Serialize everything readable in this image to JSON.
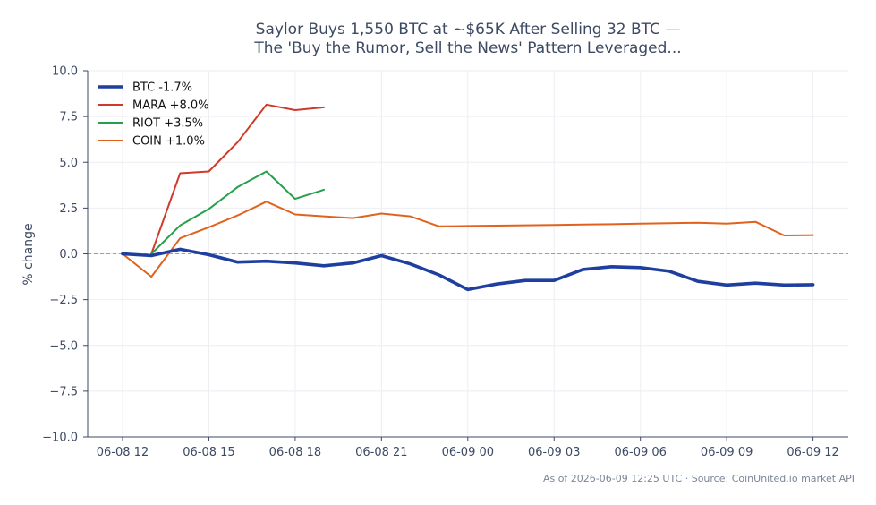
{
  "chart_data": {
    "type": "line",
    "title": "Saylor Buys 1,550 BTC at ~$65K After Selling 32 BTC —",
    "subtitle": "The 'Buy the Rumor, Sell the News' Pattern Leveraged...",
    "xlabel": "",
    "ylabel": "% change",
    "ylim": [
      -10,
      10
    ],
    "yticks": [
      10.0,
      7.5,
      5.0,
      2.5,
      0.0,
      -2.5,
      -5.0,
      -7.5,
      -10.0
    ],
    "ytick_labels": [
      "10.0",
      "7.5",
      "5.0",
      "2.5",
      "0.0",
      "−2.5",
      "−5.0",
      "−7.5",
      "−10.0"
    ],
    "xlim": [
      0,
      24.9
    ],
    "xticks": [
      0,
      3,
      6,
      9,
      12,
      15,
      18,
      21,
      24
    ],
    "xtick_labels": [
      "06-08 12",
      "06-08 15",
      "06-08 18",
      "06-08 21",
      "06-09 00",
      "06-09 03",
      "06-09 06",
      "06-09 09",
      "06-09 12"
    ],
    "grid": true,
    "legend_position": "top-left",
    "reference_line": {
      "y": 0,
      "style": "dashed"
    },
    "series": [
      {
        "name": "BTC -1.7%",
        "color": "#1f3fa0",
        "emphasis": "thick",
        "x": [
          0,
          1,
          2,
          3,
          4,
          5,
          6,
          7,
          8,
          9,
          10,
          11,
          12,
          13,
          14,
          15,
          16,
          17,
          18,
          19,
          20,
          21,
          22,
          23,
          24
        ],
        "y": [
          0.0,
          -0.1,
          0.25,
          -0.05,
          -0.45,
          -0.4,
          -0.5,
          -0.65,
          -0.5,
          -0.1,
          -0.55,
          -1.15,
          -1.95,
          -1.65,
          -1.45,
          -1.45,
          -0.85,
          -0.7,
          -0.75,
          -0.95,
          -1.5,
          -1.7,
          -1.6,
          -1.7,
          -1.68
        ]
      },
      {
        "name": "MARA +8.0%",
        "color": "#d03a2a",
        "x": [
          1,
          2,
          3,
          4,
          5,
          6,
          7
        ],
        "y": [
          0.0,
          4.4,
          4.5,
          6.1,
          8.15,
          7.85,
          8.0
        ]
      },
      {
        "name": "RIOT +3.5%",
        "color": "#25a04a",
        "x": [
          1,
          2,
          3,
          4,
          5,
          6,
          7
        ],
        "y": [
          0.0,
          1.55,
          2.45,
          3.65,
          4.5,
          3.0,
          3.5
        ]
      },
      {
        "name": "COIN +1.0%",
        "color": "#e0621c",
        "x": [
          0,
          1,
          2,
          3,
          4,
          5,
          6,
          7,
          8,
          9,
          10,
          11,
          12,
          13,
          14,
          15,
          16,
          17,
          18,
          19,
          20,
          21,
          22,
          23,
          24
        ],
        "y": [
          0.0,
          -1.25,
          0.85,
          1.45,
          2.1,
          2.85,
          2.15,
          2.05,
          1.95,
          2.2,
          2.05,
          1.5,
          1.52,
          1.54,
          1.56,
          1.58,
          1.6,
          1.62,
          1.65,
          1.67,
          1.7,
          1.65,
          1.75,
          1.0,
          1.02
        ]
      }
    ],
    "footer": "As of 2026-06-09 12:25 UTC · Source: CoinUnited.io market API"
  },
  "colors": {
    "axis": "#3d4a63",
    "grid": "#eceef2",
    "zero_line": "#94a0b8"
  }
}
